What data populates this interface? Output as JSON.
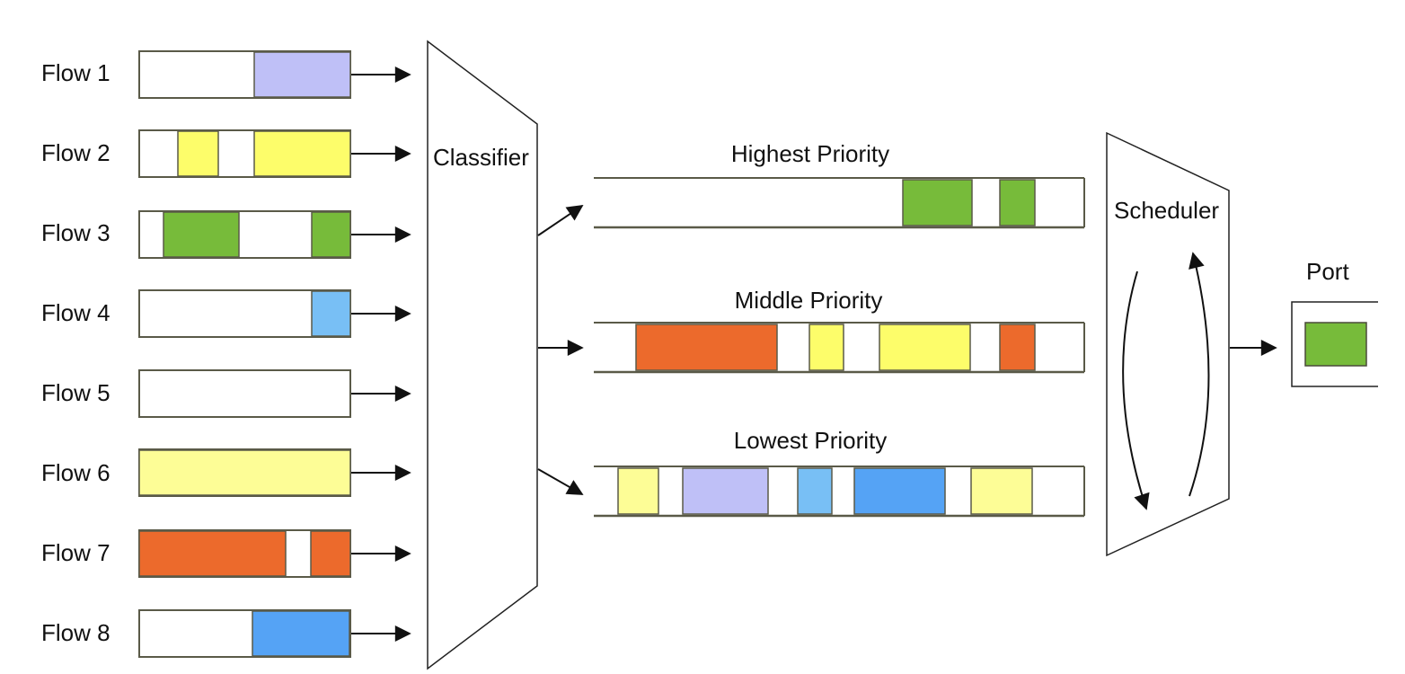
{
  "colors": {
    "outline": "#5a5a48",
    "lavender": "#bfc0f7",
    "yellow": "#fdfd6a",
    "pale_yellow": "#fdfd96",
    "green": "#77bb3a",
    "light_blue": "#78bff5",
    "orange": "#ec6a2c",
    "blue": "#55a3f5"
  },
  "flows": [
    {
      "label": "Flow 1",
      "packets": [
        "lavender"
      ]
    },
    {
      "label": "Flow 2",
      "packets": [
        "yellow",
        "yellow"
      ]
    },
    {
      "label": "Flow 3",
      "packets": [
        "green",
        "green"
      ]
    },
    {
      "label": "Flow 4",
      "packets": [
        "light_blue"
      ]
    },
    {
      "label": "Flow 5",
      "packets": []
    },
    {
      "label": "Flow 6",
      "packets": [
        "pale_yellow"
      ]
    },
    {
      "label": "Flow 7",
      "packets": [
        "orange",
        "orange"
      ]
    },
    {
      "label": "Flow 8",
      "packets": [
        "blue"
      ]
    }
  ],
  "classifier": {
    "label": "Classifier"
  },
  "queues": [
    {
      "label": "Highest Priority",
      "packets": [
        "green",
        "green"
      ]
    },
    {
      "label": "Middle Priority",
      "packets": [
        "orange",
        "yellow",
        "yellow",
        "orange"
      ]
    },
    {
      "label": "Lowest Priority",
      "packets": [
        "pale_yellow",
        "lavender",
        "light_blue",
        "blue",
        "pale_yellow"
      ]
    }
  ],
  "scheduler": {
    "label": "Scheduler"
  },
  "port": {
    "label": "Port",
    "packet": "green"
  }
}
